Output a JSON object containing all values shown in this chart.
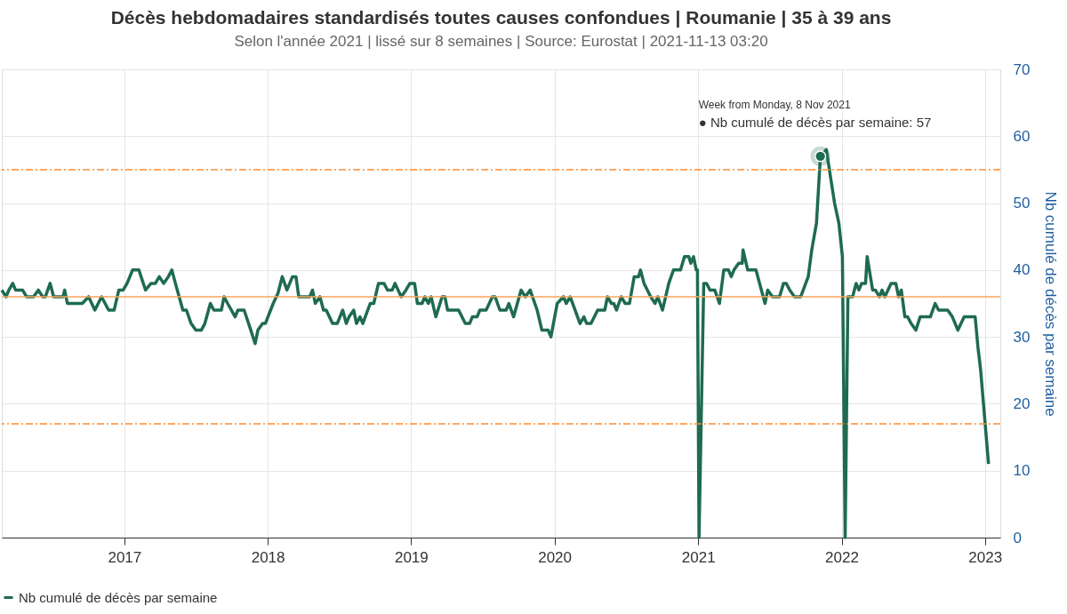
{
  "chart_data": {
    "type": "line",
    "title": "Décès hebdomadaires standardisés toutes causes confondues | Roumanie | 35 à 39 ans",
    "subtitle": "Selon l'année 2021 | lissé sur 8 semaines | Source: Eurostat | 2021-11-13 03:20",
    "ylabel": "Nb cumulé de décès par semaine",
    "x": [
      "2016-02-24",
      "2016-03-06",
      "2016-03-13",
      "2016-03-23",
      "2016-03-30",
      "2016-04-17",
      "2016-04-27",
      "2016-05-15",
      "2016-05-27",
      "2016-06-07",
      "2016-06-14",
      "2016-06-26",
      "2016-07-05",
      "2016-07-29",
      "2016-08-02",
      "2016-08-09",
      "2016-09-16",
      "2016-10-02",
      "2016-10-18",
      "2016-11-04",
      "2016-11-22",
      "2016-12-06",
      "2016-12-18",
      "2016-12-29",
      "2017-01-08",
      "2017-01-22",
      "2017-02-07",
      "2017-02-24",
      "2017-03-10",
      "2017-03-21",
      "2017-03-31",
      "2017-04-11",
      "2017-04-23",
      "2017-05-02",
      "2017-05-11",
      "2017-05-30",
      "2017-06-08",
      "2017-06-20",
      "2017-07-02",
      "2017-07-16",
      "2017-07-25",
      "2017-08-08",
      "2017-08-17",
      "2017-09-05",
      "2017-09-12",
      "2017-09-21",
      "2017-10-10",
      "2017-10-17",
      "2017-11-02",
      "2017-11-19",
      "2017-11-30",
      "2017-12-07",
      "2017-12-19",
      "2017-12-26",
      "2018-01-15",
      "2018-01-27",
      "2018-02-07",
      "2018-02-19",
      "2018-03-05",
      "2018-03-14",
      "2018-03-21",
      "2018-04-18",
      "2018-04-25",
      "2018-05-02",
      "2018-05-14",
      "2018-05-23",
      "2018-05-30",
      "2018-06-15",
      "2018-06-27",
      "2018-07-11",
      "2018-07-20",
      "2018-07-27",
      "2018-08-08",
      "2018-08-15",
      "2018-08-24",
      "2018-08-31",
      "2018-09-19",
      "2018-09-28",
      "2018-10-10",
      "2018-10-24",
      "2018-11-02",
      "2018-11-14",
      "2018-11-21",
      "2018-12-07",
      "2018-12-19",
      "2018-12-29",
      "2019-01-10",
      "2019-01-17",
      "2019-01-29",
      "2019-02-05",
      "2019-02-14",
      "2019-02-21",
      "2019-03-05",
      "2019-03-21",
      "2019-03-28",
      "2019-04-04",
      "2019-05-02",
      "2019-05-19",
      "2019-05-30",
      "2019-06-06",
      "2019-06-18",
      "2019-06-25",
      "2019-07-11",
      "2019-07-27",
      "2019-08-03",
      "2019-08-15",
      "2019-08-31",
      "2019-09-07",
      "2019-09-19",
      "2019-10-08",
      "2019-10-19",
      "2019-10-31",
      "2019-11-18",
      "2019-11-30",
      "2019-12-16",
      "2019-12-23",
      "2020-01-08",
      "2020-01-24",
      "2020-01-31",
      "2020-02-10",
      "2020-03-06",
      "2020-03-16",
      "2020-03-23",
      "2020-04-03",
      "2020-04-20",
      "2020-05-08",
      "2020-05-15",
      "2020-05-25",
      "2020-05-31",
      "2020-06-07",
      "2020-06-19",
      "2020-06-29",
      "2020-07-10",
      "2020-07-22",
      "2020-08-02",
      "2020-08-07",
      "2020-08-16",
      "2020-09-02",
      "2020-09-13",
      "2020-09-20",
      "2020-10-02",
      "2020-10-18",
      "2020-10-30",
      "2020-11-17",
      "2020-11-27",
      "2020-12-08",
      "2020-12-13",
      "2020-12-20",
      "2020-12-27",
      "2020-12-30",
      "2021-01-03",
      "2021-01-15",
      "2021-01-22",
      "2021-01-31",
      "2021-02-12",
      "2021-02-24",
      "2021-03-07",
      "2021-03-19",
      "2021-03-26",
      "2021-04-02",
      "2021-04-14",
      "2021-04-23",
      "2021-04-25",
      "2021-05-07",
      "2021-05-28",
      "2021-06-20",
      "2021-06-27",
      "2021-07-09",
      "2021-07-27",
      "2021-08-06",
      "2021-08-13",
      "2021-08-22",
      "2021-09-03",
      "2021-09-19",
      "2021-10-08",
      "2021-10-17",
      "2021-10-29",
      "2021-11-08",
      "2021-11-23",
      "2021-12-14",
      "2021-12-25",
      "2022-01-03",
      "2022-01-10",
      "2022-01-17",
      "2022-01-29",
      "2022-02-07",
      "2022-02-14",
      "2022-02-21",
      "2022-03-03",
      "2022-03-07",
      "2022-03-21",
      "2022-03-28",
      "2022-04-07",
      "2022-04-14",
      "2022-04-21",
      "2022-05-07",
      "2022-05-19",
      "2022-05-26",
      "2022-06-02",
      "2022-06-11",
      "2022-06-18",
      "2022-06-27",
      "2022-07-09",
      "2022-07-20",
      "2022-08-15",
      "2022-08-27",
      "2022-09-05",
      "2022-09-28",
      "2022-10-10",
      "2022-10-24",
      "2022-11-09",
      "2022-12-07",
      "2022-12-14",
      "2022-12-21",
      "2023-01-10"
    ],
    "series": [
      {
        "name": "Nb cumulé de décès par semaine",
        "color": "#1e6b50",
        "values": [
          37,
          36,
          37,
          38,
          37,
          37,
          36,
          36,
          37,
          36,
          36,
          38,
          36,
          36,
          37,
          35,
          35,
          36,
          34,
          36,
          34,
          34,
          37,
          37,
          38,
          40,
          40,
          37,
          38,
          38,
          39,
          38,
          39,
          40,
          38,
          34,
          34,
          32,
          31,
          31,
          32,
          35,
          34,
          34,
          36,
          35,
          33,
          34,
          34,
          31,
          29,
          31,
          32,
          32,
          35,
          36.5,
          39,
          37,
          39,
          39,
          36,
          36,
          37,
          35,
          36,
          34,
          34,
          32,
          32,
          34,
          32,
          33,
          34,
          32,
          33,
          32,
          35,
          35,
          38,
          38,
          37,
          37,
          38,
          36,
          37,
          38,
          38,
          35,
          35,
          36,
          35,
          36,
          33,
          36,
          36,
          34,
          34,
          32,
          32,
          33,
          33,
          34,
          34,
          36,
          36,
          34,
          34,
          35,
          33,
          37,
          36,
          37,
          34,
          31,
          31,
          30,
          35,
          36,
          35,
          36,
          32,
          33,
          32,
          32,
          34,
          34,
          36,
          35,
          35,
          34,
          36,
          35,
          35,
          39,
          39,
          40,
          38,
          36,
          35,
          36,
          34,
          38,
          40,
          40,
          42,
          42,
          41,
          42,
          40,
          40,
          0,
          38,
          38,
          37,
          37,
          35,
          40,
          40,
          39,
          40,
          41,
          41,
          43,
          40,
          40,
          35,
          37,
          36,
          36,
          38,
          38,
          37,
          36,
          36,
          39,
          43,
          47,
          57,
          58,
          50,
          47,
          42,
          0,
          36,
          36,
          38,
          37,
          38,
          38,
          42,
          37,
          37,
          36,
          37,
          36,
          38,
          38,
          36,
          37,
          33,
          33,
          32,
          31,
          33,
          33,
          35,
          34,
          34,
          33,
          31,
          33,
          33,
          28.5,
          25,
          11
        ]
      }
    ],
    "xlim": [
      "2016-02-24",
      "2023-02-09"
    ],
    "xticks": [
      {
        "value": "2017",
        "label": "2017"
      },
      {
        "value": "2018",
        "label": "2018"
      },
      {
        "value": "2019",
        "label": "2019"
      },
      {
        "value": "2020",
        "label": "2020"
      },
      {
        "value": "2021",
        "label": "2021"
      },
      {
        "value": "2022",
        "label": "2022"
      },
      {
        "value": "2023",
        "label": "2023"
      }
    ],
    "ylim": [
      0,
      70
    ],
    "yticks": [
      0,
      10,
      20,
      30,
      40,
      50,
      60,
      70
    ],
    "ref_lines": [
      {
        "axis": "y",
        "value": 36,
        "color": "#f7a35c",
        "line_style": "solid"
      },
      {
        "axis": "y",
        "value": 55,
        "color": "#ff8c2e",
        "line_style": "dashed"
      },
      {
        "axis": "y",
        "value": 17,
        "color": "#ff8c2e",
        "line_style": "dashed"
      }
    ],
    "annotations": [
      "Week from Monday, 8 Nov 2021",
      {
        "text": "● Nb cumulé de décès par semaine: 57",
        "x": "2021-11-08",
        "y": 57
      }
    ],
    "grid": true,
    "legend": "bottom",
    "marker": "none",
    "line_style": "solid"
  }
}
